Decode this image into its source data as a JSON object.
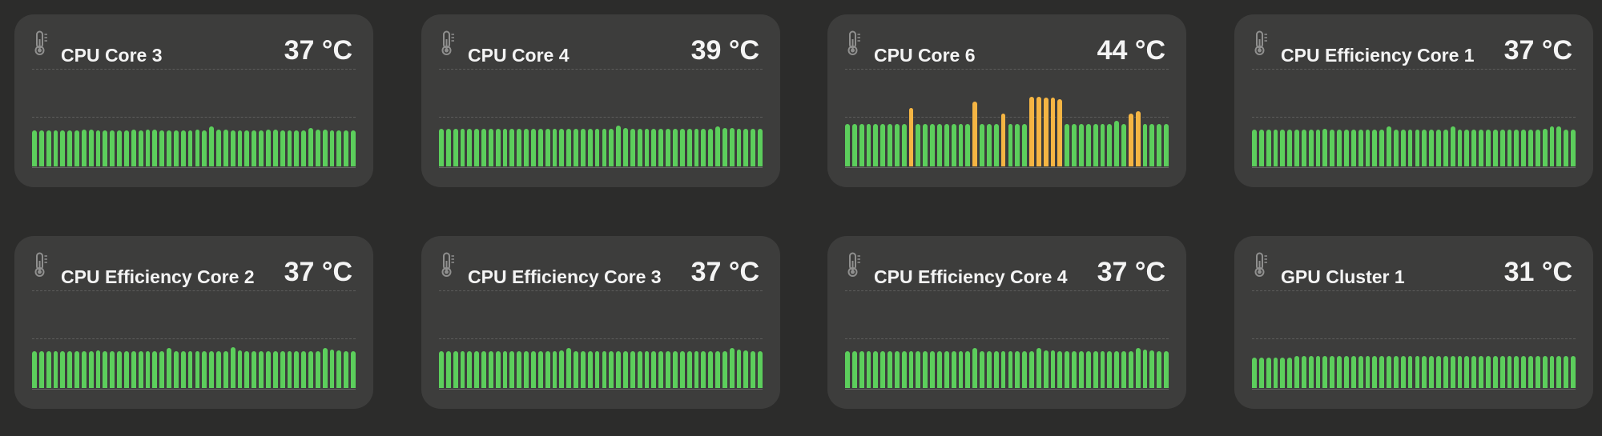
{
  "colors": {
    "normal": "#5cce5c",
    "warm": "#f5b543",
    "card": "#3d3d3c",
    "background": "#2c2c2b"
  },
  "icon": "thermometer-icon",
  "cards": [
    {
      "title": "CPU Core 3",
      "temp": "37 °C",
      "bars": [
        0.36,
        0.36,
        0.36,
        0.36,
        0.36,
        0.36,
        0.36,
        0.37,
        0.37,
        0.36,
        0.36,
        0.36,
        0.36,
        0.36,
        0.37,
        0.36,
        0.37,
        0.37,
        0.36,
        0.36,
        0.36,
        0.36,
        0.36,
        0.37,
        0.36,
        0.4,
        0.37,
        0.37,
        0.36,
        0.36,
        0.36,
        0.36,
        0.36,
        0.37,
        0.37,
        0.36,
        0.36,
        0.36,
        0.36,
        0.39,
        0.37,
        0.37,
        0.36,
        0.36,
        0.36,
        0.36
      ],
      "warm": []
    },
    {
      "title": "CPU Core 4",
      "temp": "39 °C",
      "bars": [
        0.38,
        0.38,
        0.38,
        0.38,
        0.38,
        0.38,
        0.38,
        0.38,
        0.38,
        0.38,
        0.38,
        0.38,
        0.38,
        0.38,
        0.38,
        0.38,
        0.38,
        0.38,
        0.38,
        0.38,
        0.38,
        0.38,
        0.38,
        0.38,
        0.38,
        0.41,
        0.39,
        0.38,
        0.38,
        0.38,
        0.38,
        0.38,
        0.38,
        0.38,
        0.38,
        0.38,
        0.38,
        0.38,
        0.38,
        0.4,
        0.39,
        0.39,
        0.38,
        0.38,
        0.38,
        0.38
      ],
      "warm": []
    },
    {
      "title": "CPU Core 6",
      "temp": "44 °C",
      "bars": [
        0.43,
        0.43,
        0.43,
        0.43,
        0.43,
        0.43,
        0.43,
        0.43,
        0.43,
        0.59,
        0.43,
        0.43,
        0.43,
        0.43,
        0.43,
        0.43,
        0.43,
        0.43,
        0.65,
        0.43,
        0.43,
        0.43,
        0.53,
        0.43,
        0.43,
        0.43,
        0.7,
        0.7,
        0.69,
        0.69,
        0.68,
        0.43,
        0.43,
        0.43,
        0.43,
        0.43,
        0.43,
        0.43,
        0.46,
        0.43,
        0.53,
        0.56,
        0.43,
        0.43,
        0.43,
        0.43
      ],
      "warm": [
        9,
        18,
        22,
        26,
        27,
        28,
        29,
        30,
        40,
        41
      ]
    },
    {
      "title": "CPU Efficiency Core 1",
      "temp": "37 °C",
      "bars": [
        0.37,
        0.37,
        0.37,
        0.37,
        0.37,
        0.37,
        0.37,
        0.37,
        0.37,
        0.37,
        0.38,
        0.37,
        0.37,
        0.37,
        0.37,
        0.37,
        0.37,
        0.37,
        0.37,
        0.4,
        0.37,
        0.37,
        0.37,
        0.37,
        0.37,
        0.37,
        0.37,
        0.37,
        0.4,
        0.37,
        0.37,
        0.37,
        0.37,
        0.37,
        0.37,
        0.37,
        0.37,
        0.37,
        0.37,
        0.37,
        0.37,
        0.38,
        0.4,
        0.4,
        0.37,
        0.37
      ],
      "warm": []
    },
    {
      "title": "CPU Efficiency Core 2",
      "temp": "37 °C",
      "bars": [
        0.37,
        0.37,
        0.37,
        0.37,
        0.37,
        0.37,
        0.37,
        0.37,
        0.37,
        0.38,
        0.37,
        0.37,
        0.37,
        0.37,
        0.37,
        0.37,
        0.37,
        0.37,
        0.37,
        0.4,
        0.37,
        0.37,
        0.37,
        0.37,
        0.37,
        0.37,
        0.37,
        0.37,
        0.41,
        0.38,
        0.37,
        0.37,
        0.37,
        0.37,
        0.37,
        0.37,
        0.37,
        0.37,
        0.37,
        0.37,
        0.37,
        0.4,
        0.39,
        0.38,
        0.37,
        0.37
      ],
      "warm": []
    },
    {
      "title": "CPU Efficiency Core 3",
      "temp": "37 °C",
      "bars": [
        0.37,
        0.37,
        0.37,
        0.37,
        0.37,
        0.37,
        0.37,
        0.37,
        0.37,
        0.37,
        0.37,
        0.37,
        0.37,
        0.37,
        0.37,
        0.37,
        0.37,
        0.38,
        0.4,
        0.37,
        0.37,
        0.37,
        0.37,
        0.37,
        0.37,
        0.37,
        0.37,
        0.37,
        0.37,
        0.37,
        0.37,
        0.37,
        0.37,
        0.37,
        0.37,
        0.37,
        0.37,
        0.37,
        0.37,
        0.37,
        0.37,
        0.4,
        0.39,
        0.38,
        0.37,
        0.37
      ],
      "warm": []
    },
    {
      "title": "CPU Efficiency Core 4",
      "temp": "37 °C",
      "bars": [
        0.37,
        0.37,
        0.37,
        0.37,
        0.37,
        0.37,
        0.37,
        0.37,
        0.37,
        0.37,
        0.37,
        0.37,
        0.37,
        0.37,
        0.37,
        0.37,
        0.37,
        0.37,
        0.4,
        0.37,
        0.37,
        0.37,
        0.37,
        0.37,
        0.37,
        0.37,
        0.37,
        0.4,
        0.38,
        0.38,
        0.37,
        0.37,
        0.37,
        0.37,
        0.37,
        0.37,
        0.37,
        0.37,
        0.37,
        0.37,
        0.37,
        0.4,
        0.39,
        0.38,
        0.37,
        0.37
      ],
      "warm": []
    },
    {
      "title": "GPU Cluster 1",
      "temp": "31 °C",
      "bars": [
        0.31,
        0.31,
        0.31,
        0.31,
        0.31,
        0.31,
        0.32,
        0.32,
        0.32,
        0.32,
        0.32,
        0.32,
        0.32,
        0.32,
        0.32,
        0.32,
        0.32,
        0.32,
        0.32,
        0.32,
        0.32,
        0.32,
        0.32,
        0.32,
        0.32,
        0.32,
        0.32,
        0.32,
        0.32,
        0.32,
        0.32,
        0.32,
        0.32,
        0.32,
        0.32,
        0.32,
        0.32,
        0.32,
        0.32,
        0.32,
        0.32,
        0.32,
        0.32,
        0.32,
        0.32,
        0.32
      ],
      "warm": []
    }
  ]
}
